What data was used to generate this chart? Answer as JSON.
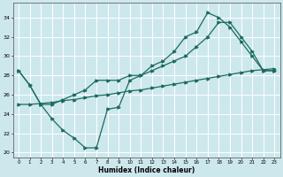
{
  "xlabel": "Humidex (Indice chaleur)",
  "bg_color": "#cde8ec",
  "grid_color": "#ffffff",
  "line_color": "#1b6b5e",
  "xlim": [
    -0.5,
    23.5
  ],
  "ylim": [
    19.5,
    35.5
  ],
  "yticks": [
    20,
    22,
    24,
    26,
    28,
    30,
    32,
    34
  ],
  "xticks": [
    0,
    1,
    2,
    3,
    4,
    5,
    6,
    7,
    8,
    9,
    10,
    11,
    12,
    13,
    14,
    15,
    16,
    17,
    18,
    19,
    20,
    21,
    22,
    23
  ],
  "line1_x": [
    0,
    1,
    2,
    3,
    4,
    5,
    6,
    7,
    8,
    9,
    10,
    11,
    12,
    13,
    14,
    15,
    16,
    17,
    18,
    19,
    20,
    21,
    22,
    23
  ],
  "line1_y": [
    28.5,
    27.0,
    25.0,
    23.5,
    22.3,
    21.5,
    20.5,
    20.5,
    24.5,
    24.7,
    27.5,
    28.0,
    29.0,
    29.5,
    30.5,
    32.0,
    32.5,
    34.5,
    34.0,
    33.0,
    31.5,
    30.0,
    28.5,
    28.5
  ],
  "line2_x": [
    0,
    1,
    2,
    3,
    4,
    5,
    6,
    7,
    8,
    9,
    10,
    11,
    12,
    13,
    14,
    15,
    16,
    17,
    18,
    19,
    20,
    21,
    22,
    23
  ],
  "line2_y": [
    28.5,
    27.0,
    25.0,
    25.0,
    25.5,
    26.0,
    26.5,
    27.5,
    27.5,
    27.5,
    28.0,
    28.0,
    28.5,
    29.0,
    29.5,
    30.0,
    31.0,
    32.0,
    33.5,
    33.5,
    32.0,
    30.5,
    28.5,
    28.5
  ],
  "line3_x": [
    0,
    1,
    2,
    3,
    4,
    5,
    6,
    7,
    8,
    9,
    10,
    11,
    12,
    13,
    14,
    15,
    16,
    17,
    18,
    19,
    20,
    21,
    22,
    23
  ],
  "line3_y": [
    25.0,
    25.0,
    25.1,
    25.2,
    25.4,
    25.5,
    25.7,
    25.9,
    26.0,
    26.2,
    26.4,
    26.5,
    26.7,
    26.9,
    27.1,
    27.3,
    27.5,
    27.7,
    27.9,
    28.1,
    28.3,
    28.5,
    28.6,
    28.7
  ]
}
